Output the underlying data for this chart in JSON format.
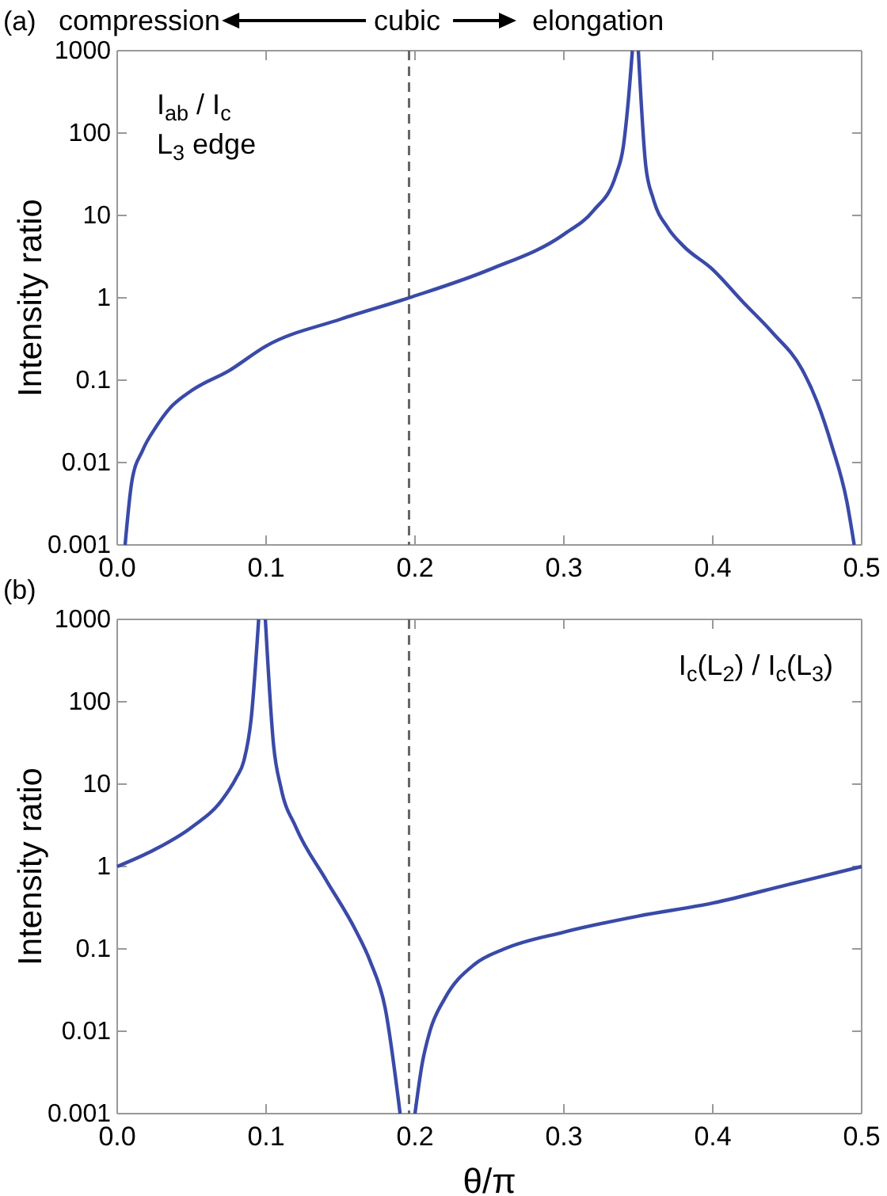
{
  "chart_data": [
    {
      "type": "line",
      "title": "(a)",
      "ylabel": "Intensity ratio",
      "log": "y",
      "xlim": [
        0,
        0.5
      ],
      "ylim": [
        0.001,
        1000
      ],
      "xticks": [
        {
          "value": 0,
          "label": "0.0"
        },
        {
          "value": 0.1,
          "label": "0.1"
        },
        {
          "value": 0.2,
          "label": "0.2"
        },
        {
          "value": 0.3,
          "label": "0.3"
        },
        {
          "value": 0.4,
          "label": "0.4"
        },
        {
          "value": 0.5,
          "label": "0.5"
        }
      ],
      "yticks": [
        0.001,
        0.01,
        0.1,
        1,
        10,
        100,
        1000
      ],
      "annotations": [
        "compression",
        "cubic",
        "elongation",
        "I$_{ab}$ / I$_{c}$",
        "L$_{3}$ edge"
      ],
      "ref_lines": [
        {
          "axis": "x",
          "value": 0.196,
          "color": "#666666",
          "line_style": "dashed"
        }
      ],
      "series": [
        {
          "color": "#3a4aa8",
          "x": [
            0.0053,
            0.0099,
            0.017,
            0.026,
            0.035,
            0.05,
            0.075,
            0.1,
            0.15,
            0.196,
            0.25,
            0.3,
            0.32,
            0.335,
            0.34,
            0.343,
            0.346,
            0.348,
            0.35,
            0.355,
            0.36,
            0.37,
            0.38,
            0.4,
            0.42,
            0.44,
            0.46,
            0.47,
            0.48,
            0.49,
            0.495
          ],
          "values": [
            0.001,
            0.006,
            0.014,
            0.027,
            0.045,
            0.075,
            0.13,
            0.26,
            0.55,
            1,
            2.2,
            5.9,
            11.5,
            31,
            70,
            218,
            1000,
            null,
            1000,
            40,
            16,
            7,
            4.3,
            2.2,
            0.9,
            0.38,
            0.135,
            0.055,
            0.016,
            0.0034,
            0.001
          ]
        }
      ]
    },
    {
      "type": "line",
      "title": "(b)",
      "xlabel": "θ/π",
      "ylabel": "Intensity ratio",
      "log": "y",
      "xlim": [
        0,
        0.5
      ],
      "ylim": [
        0.001,
        1000
      ],
      "xticks": [
        {
          "value": 0,
          "label": "0.0"
        },
        {
          "value": 0.1,
          "label": "0.1"
        },
        {
          "value": 0.2,
          "label": "0.2"
        },
        {
          "value": 0.3,
          "label": "0.3"
        },
        {
          "value": 0.4,
          "label": "0.4"
        },
        {
          "value": 0.5,
          "label": "0.5"
        }
      ],
      "yticks": [
        0.001,
        0.01,
        0.1,
        1,
        10,
        100,
        1000
      ],
      "annotations": [
        "I$_{c}$(L$_{2}$) / I$_{c}$(L$_{3}$)"
      ],
      "ref_lines": [
        {
          "axis": "x",
          "value": 0.196,
          "color": "#666666",
          "line_style": "dashed"
        }
      ],
      "series": [
        {
          "color": "#3a4aa8",
          "x": [
            0,
            0.025,
            0.05,
            0.07,
            0.08,
            0.085,
            0.09,
            0.095,
            0.097,
            0.0995,
            0.105,
            0.11,
            0.12,
            0.14,
            0.16,
            0.17,
            0.18,
            0.19,
            0.195,
            0.2,
            0.205,
            0.21,
            0.22,
            0.24,
            0.26,
            0.3,
            0.35,
            0.4,
            0.45,
            0.5
          ],
          "values": [
            1,
            1.6,
            3,
            6.3,
            12,
            19,
            63,
            1000,
            null,
            1000,
            30,
            9,
            3,
            0.7,
            0.17,
            0.07,
            0.019,
            0.001,
            null,
            0.001,
            0.0042,
            0.01,
            0.025,
            0.065,
            0.1,
            0.16,
            0.25,
            0.36,
            0.6,
            1
          ]
        }
      ]
    }
  ]
}
